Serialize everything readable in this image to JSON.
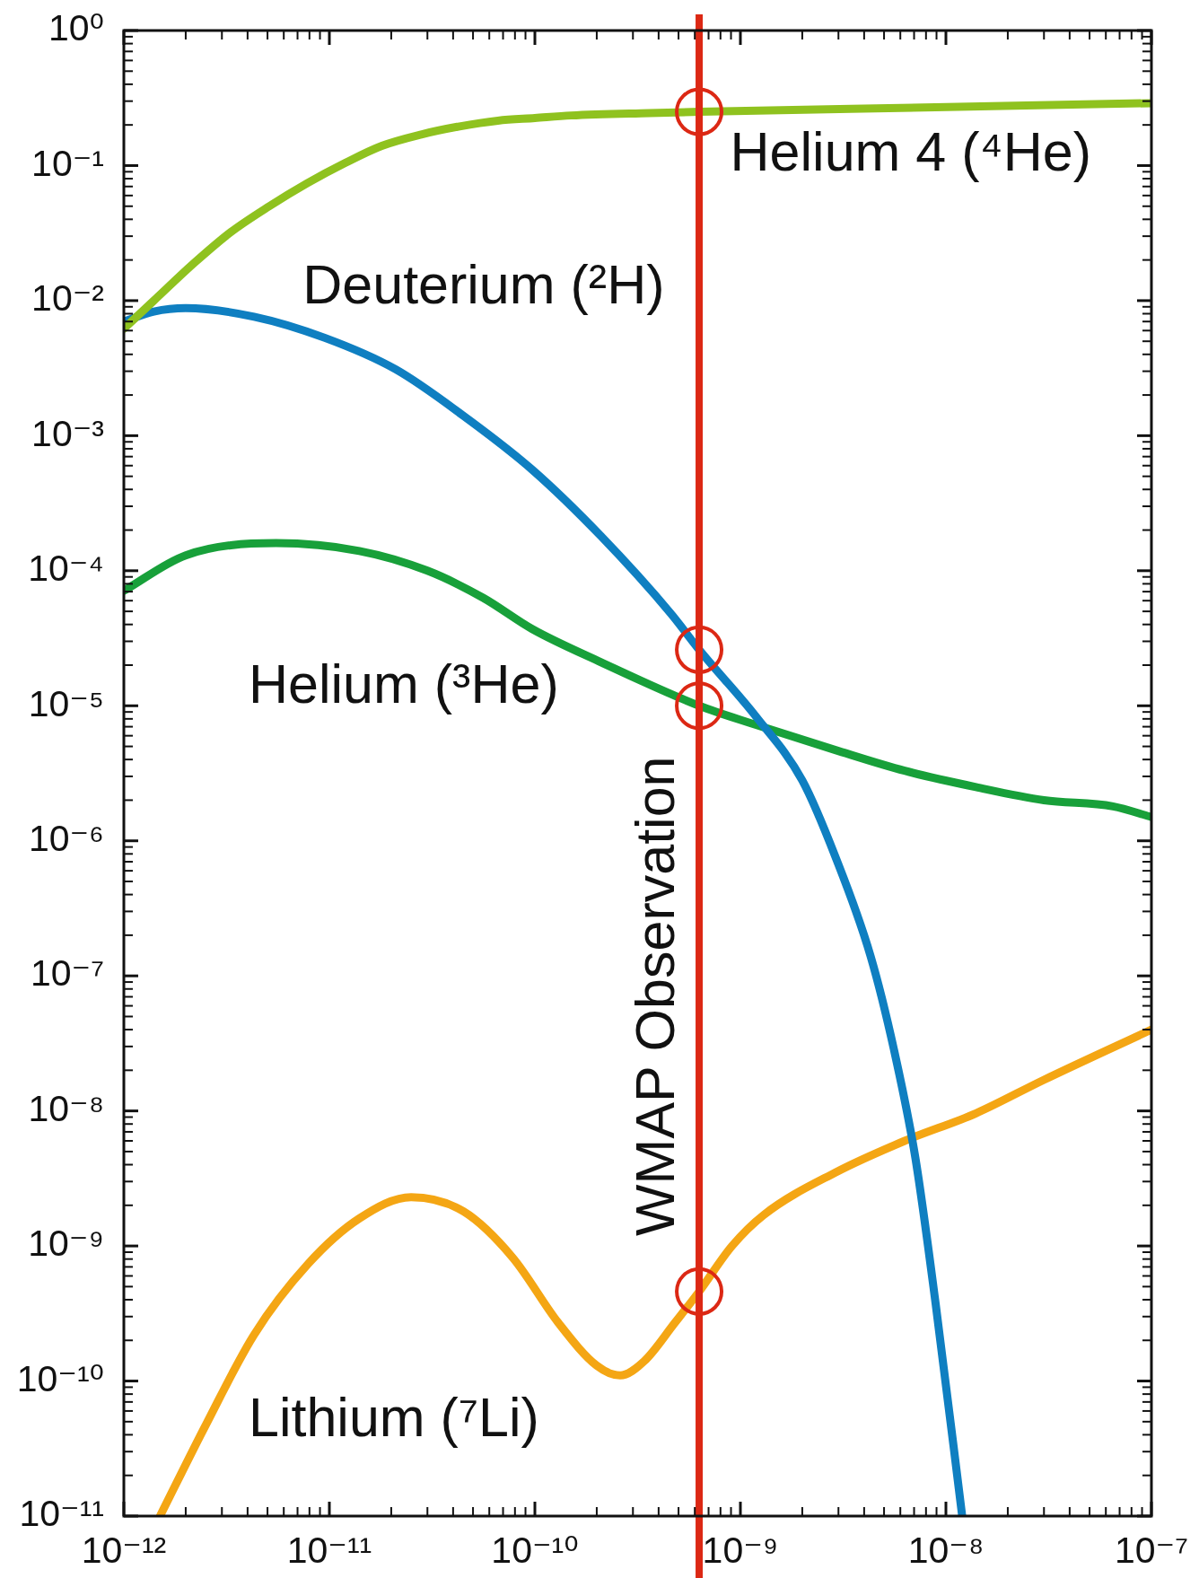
{
  "chart_data": {
    "type": "line",
    "log": "xy",
    "xlim": [
      1e-12,
      1e-07
    ],
    "ylim": [
      1e-11,
      1
    ],
    "xticks": [
      {
        "value": 1e-12,
        "label": "10⁻¹²"
      },
      {
        "value": 2e-12,
        "label": null
      },
      {
        "value": 3e-12,
        "label": null
      },
      {
        "value": 4e-12,
        "label": null
      },
      {
        "value": 5e-12,
        "label": null
      },
      {
        "value": 6e-12,
        "label": null
      },
      {
        "value": 7e-12,
        "label": null
      },
      {
        "value": 8e-12,
        "label": null
      },
      {
        "value": 9e-12,
        "label": null
      },
      {
        "value": 1e-11,
        "label": "10⁻¹¹"
      },
      {
        "value": 2e-11,
        "label": null
      },
      {
        "value": 3e-11,
        "label": null
      },
      {
        "value": 4e-11,
        "label": null
      },
      {
        "value": 5e-11,
        "label": null
      },
      {
        "value": 6e-11,
        "label": null
      },
      {
        "value": 7e-11,
        "label": null
      },
      {
        "value": 8e-11,
        "label": null
      },
      {
        "value": 9e-11,
        "label": null
      },
      {
        "value": 1e-10,
        "label": "10⁻¹⁰"
      },
      {
        "value": 2e-10,
        "label": null
      },
      {
        "value": 3e-10,
        "label": null
      },
      {
        "value": 4e-10,
        "label": null
      },
      {
        "value": 5e-10,
        "label": null
      },
      {
        "value": 6e-10,
        "label": null
      },
      {
        "value": 7e-10,
        "label": null
      },
      {
        "value": 8e-10,
        "label": null
      },
      {
        "value": 9e-10,
        "label": null
      },
      {
        "value": 1e-09,
        "label": "10⁻⁹"
      },
      {
        "value": 2e-09,
        "label": null
      },
      {
        "value": 3e-09,
        "label": null
      },
      {
        "value": 4e-09,
        "label": null
      },
      {
        "value": 5e-09,
        "label": null
      },
      {
        "value": 6e-09,
        "label": null
      },
      {
        "value": 7e-09,
        "label": null
      },
      {
        "value": 8e-09,
        "label": null
      },
      {
        "value": 9e-09,
        "label": null
      },
      {
        "value": 1e-08,
        "label": "10⁻⁸"
      },
      {
        "value": 2e-08,
        "label": null
      },
      {
        "value": 3e-08,
        "label": null
      },
      {
        "value": 4e-08,
        "label": null
      },
      {
        "value": 5e-08,
        "label": null
      },
      {
        "value": 6e-08,
        "label": null
      },
      {
        "value": 7e-08,
        "label": null
      },
      {
        "value": 8e-08,
        "label": null
      },
      {
        "value": 9e-08,
        "label": null
      },
      {
        "value": 1e-07,
        "label": "10⁻⁷"
      }
    ],
    "yticks": [
      {
        "value": 1e-11,
        "label": "10⁻¹¹"
      },
      {
        "value": 2e-11,
        "label": null
      },
      {
        "value": 3e-11,
        "label": null
      },
      {
        "value": 4e-11,
        "label": null
      },
      {
        "value": 5e-11,
        "label": null
      },
      {
        "value": 6e-11,
        "label": null
      },
      {
        "value": 7e-11,
        "label": null
      },
      {
        "value": 8e-11,
        "label": null
      },
      {
        "value": 9e-11,
        "label": null
      },
      {
        "value": 1e-10,
        "label": "10⁻¹⁰"
      },
      {
        "value": 2e-10,
        "label": null
      },
      {
        "value": 3e-10,
        "label": null
      },
      {
        "value": 4e-10,
        "label": null
      },
      {
        "value": 5e-10,
        "label": null
      },
      {
        "value": 6e-10,
        "label": null
      },
      {
        "value": 7e-10,
        "label": null
      },
      {
        "value": 8e-10,
        "label": null
      },
      {
        "value": 9e-10,
        "label": null
      },
      {
        "value": 1e-09,
        "label": "10⁻⁹"
      },
      {
        "value": 2e-09,
        "label": null
      },
      {
        "value": 3e-09,
        "label": null
      },
      {
        "value": 4e-09,
        "label": null
      },
      {
        "value": 5e-09,
        "label": null
      },
      {
        "value": 6e-09,
        "label": null
      },
      {
        "value": 7e-09,
        "label": null
      },
      {
        "value": 8e-09,
        "label": null
      },
      {
        "value": 9e-09,
        "label": null
      },
      {
        "value": 1e-08,
        "label": "10⁻⁸"
      },
      {
        "value": 2e-08,
        "label": null
      },
      {
        "value": 3e-08,
        "label": null
      },
      {
        "value": 4e-08,
        "label": null
      },
      {
        "value": 5e-08,
        "label": null
      },
      {
        "value": 6e-08,
        "label": null
      },
      {
        "value": 7e-08,
        "label": null
      },
      {
        "value": 8e-08,
        "label": null
      },
      {
        "value": 9e-08,
        "label": null
      },
      {
        "value": 1e-07,
        "label": "10⁻⁷"
      },
      {
        "value": 2e-07,
        "label": null
      },
      {
        "value": 3e-07,
        "label": null
      },
      {
        "value": 4e-07,
        "label": null
      },
      {
        "value": 5e-07,
        "label": null
      },
      {
        "value": 6e-07,
        "label": null
      },
      {
        "value": 7e-07,
        "label": null
      },
      {
        "value": 8e-07,
        "label": null
      },
      {
        "value": 9e-07,
        "label": null
      },
      {
        "value": 1e-06,
        "label": "10⁻⁶"
      },
      {
        "value": 2e-06,
        "label": null
      },
      {
        "value": 3e-06,
        "label": null
      },
      {
        "value": 4e-06,
        "label": null
      },
      {
        "value": 5e-06,
        "label": null
      },
      {
        "value": 6e-06,
        "label": null
      },
      {
        "value": 7e-06,
        "label": null
      },
      {
        "value": 8e-06,
        "label": null
      },
      {
        "value": 9e-06,
        "label": null
      },
      {
        "value": 1e-05,
        "label": "10⁻⁵"
      },
      {
        "value": 2e-05,
        "label": null
      },
      {
        "value": 3e-05,
        "label": null
      },
      {
        "value": 4e-05,
        "label": null
      },
      {
        "value": 5e-05,
        "label": null
      },
      {
        "value": 6e-05,
        "label": null
      },
      {
        "value": 7e-05,
        "label": null
      },
      {
        "value": 8e-05,
        "label": null
      },
      {
        "value": 9e-05,
        "label": null
      },
      {
        "value": 0.0001,
        "label": "10⁻⁴"
      },
      {
        "value": 0.0002,
        "label": null
      },
      {
        "value": 0.0003,
        "label": null
      },
      {
        "value": 0.0004,
        "label": null
      },
      {
        "value": 0.0005,
        "label": null
      },
      {
        "value": 0.0006,
        "label": null
      },
      {
        "value": 0.0007,
        "label": null
      },
      {
        "value": 0.0008,
        "label": null
      },
      {
        "value": 0.0009,
        "label": null
      },
      {
        "value": 0.001,
        "label": "10⁻³"
      },
      {
        "value": 0.002,
        "label": null
      },
      {
        "value": 0.003,
        "label": null
      },
      {
        "value": 0.004,
        "label": null
      },
      {
        "value": 0.005,
        "label": null
      },
      {
        "value": 0.006,
        "label": null
      },
      {
        "value": 0.007,
        "label": null
      },
      {
        "value": 0.008,
        "label": null
      },
      {
        "value": 0.009,
        "label": null
      },
      {
        "value": 0.01,
        "label": "10⁻²"
      },
      {
        "value": 0.02,
        "label": null
      },
      {
        "value": 0.03,
        "label": null
      },
      {
        "value": 0.04,
        "label": null
      },
      {
        "value": 0.05,
        "label": null
      },
      {
        "value": 0.06,
        "label": null
      },
      {
        "value": 0.07,
        "label": null
      },
      {
        "value": 0.08,
        "label": null
      },
      {
        "value": 0.09,
        "label": null
      },
      {
        "value": 0.1,
        "label": "10⁻¹"
      },
      {
        "value": 0.2,
        "label": null
      },
      {
        "value": 0.3,
        "label": null
      },
      {
        "value": 0.4,
        "label": null
      },
      {
        "value": 0.5,
        "label": null
      },
      {
        "value": 0.6,
        "label": null
      },
      {
        "value": 0.7,
        "label": null
      },
      {
        "value": 0.8,
        "label": null
      },
      {
        "value": 0.9,
        "label": null
      },
      {
        "value": 1,
        "label": "10⁰"
      }
    ],
    "series": [
      {
        "name": "Helium 4 (⁴He)",
        "color": "#8fc21f",
        "x": [
          1e-12,
          1.4e-12,
          2.2e-12,
          3.3e-12,
          5.1e-12,
          7.8e-12,
          1.2e-11,
          1.8e-11,
          2.8e-11,
          4.3e-11,
          6.6e-11,
          1e-10,
          1.5e-10,
          3.6e-10,
          6.3e-10,
          8.9e-09,
          1e-07
        ],
        "values": [
          0.0062,
          0.01,
          0.019,
          0.032,
          0.05,
          0.074,
          0.105,
          0.14,
          0.17,
          0.195,
          0.215,
          0.225,
          0.235,
          0.245,
          0.25,
          0.27,
          0.29
        ]
      },
      {
        "name": "Deuterium (²H)",
        "color": "#0f7fc1",
        "x": [
          1e-12,
          1.4e-12,
          2e-12,
          4.3e-12,
          9.5e-12,
          2.1e-11,
          4.5e-11,
          9.7e-11,
          2.1e-10,
          4.6e-10,
          6.3e-10,
          1.2e-09,
          2e-09,
          2.9e-09,
          4.3e-09,
          5.6e-09,
          7.1e-09,
          8.9e-09,
          1.2e-08
        ],
        "values": [
          0.007,
          0.0083,
          0.0088,
          0.0076,
          0.0053,
          0.0031,
          0.0014,
          0.00056,
          0.00018,
          4.8e-05,
          2.6e-05,
          8.2e-06,
          2.8e-06,
          7.6e-07,
          1.4e-07,
          2.8e-08,
          4.5e-09,
          3.8e-10,
          1e-11
        ]
      },
      {
        "name": "Helium (³He)",
        "color": "#18a03a",
        "x": [
          1e-12,
          2e-12,
          5.5e-12,
          1.4e-11,
          3e-11,
          5.6e-11,
          9.7e-11,
          2.1e-10,
          6.3e-10,
          1.2e-09,
          2.9e-09,
          6.3e-09,
          1.4e-08,
          3e-08,
          6.5e-08,
          1e-07
        ],
        "values": [
          7.1e-05,
          0.00013,
          0.00016,
          0.00014,
          0.0001,
          6.3e-05,
          3.7e-05,
          2.1e-05,
          1e-05,
          7.2e-06,
          4.7e-06,
          3.3e-06,
          2.5e-06,
          2e-06,
          1.8e-06,
          1.5e-06
        ]
      },
      {
        "name": "Lithium (⁷Li)",
        "color": "#f4a614",
        "x": [
          1.5e-12,
          2.5e-12,
          4.3e-12,
          7.9e-12,
          1.4e-11,
          2.5e-11,
          4.5e-11,
          7.8e-11,
          1.3e-10,
          2e-10,
          2.6e-10,
          3.4e-10,
          4.8e-10,
          6.3e-10,
          9.1e-10,
          1.3e-09,
          2.9e-09,
          6.3e-09,
          1.4e-08,
          3e-08,
          1e-07
        ],
        "values": [
          1e-11,
          4.7e-11,
          2.2e-10,
          7.4e-10,
          1.6e-09,
          2.3e-09,
          1.8e-09,
          8.2e-10,
          2.7e-10,
          1.3e-10,
          1.1e-10,
          1.4e-10,
          2.7e-10,
          4.6e-10,
          1e-09,
          1.7e-09,
          3.5e-09,
          6e-09,
          9.6e-09,
          1.7e-08,
          4e-08
        ]
      },
      {
        "type": "scatter",
        "color": "#dc2814",
        "marker": "circle",
        "x": [
          6.3e-10,
          6.3e-10,
          6.3e-10,
          6.3e-10
        ],
        "values": [
          0.25,
          2.6e-05,
          1e-05,
          4.6e-10
        ]
      }
    ],
    "ref_lines": [
      {
        "axis": "x",
        "value": 6.3e-10,
        "label": "WMAP Observation",
        "color": "#dc2814"
      }
    ]
  }
}
